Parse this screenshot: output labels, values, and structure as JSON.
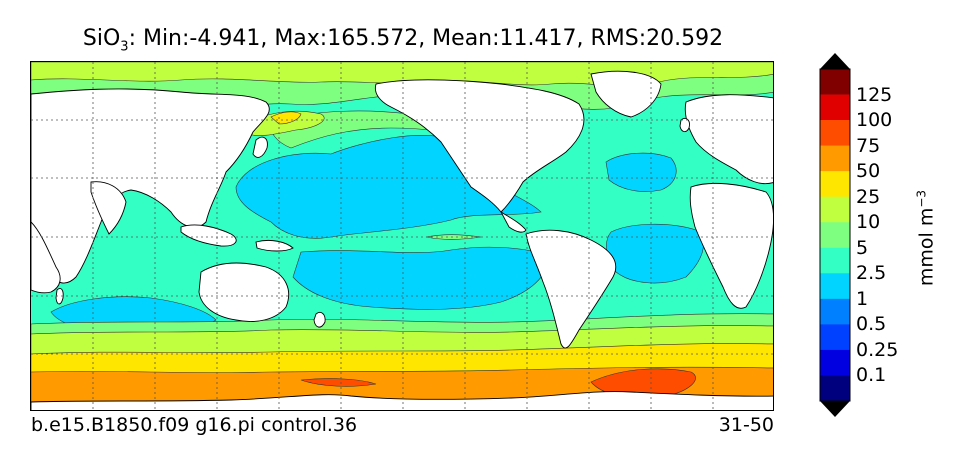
{
  "title": {
    "variable": "SiO",
    "subscript": "3",
    "stats": ": Min:-4.941, Max:165.572, Mean:11.417, RMS:20.592"
  },
  "footer": {
    "case_name": "b.e15.B1850.f09 g16.pi control.36",
    "years": "31-50"
  },
  "colorbar": {
    "unit_base": "mmol m",
    "unit_exponent": "−3",
    "tick_labels": [
      "0.1",
      "0.25",
      "0.5",
      "1",
      "2.5",
      "5",
      "10",
      "25",
      "50",
      "75",
      "100",
      "125"
    ],
    "colors": [
      "#00007f",
      "#0000e0",
      "#0040ff",
      "#0080ff",
      "#00d4ff",
      "#33ffc4",
      "#7fff7f",
      "#bfff3f",
      "#ffe600",
      "#ff9a00",
      "#ff4d00",
      "#e10000",
      "#800000"
    ],
    "extend": "both"
  },
  "map": {
    "projection": "cylindrical equidistant",
    "land_color": "#ffffff",
    "grid": "dotted"
  }
}
